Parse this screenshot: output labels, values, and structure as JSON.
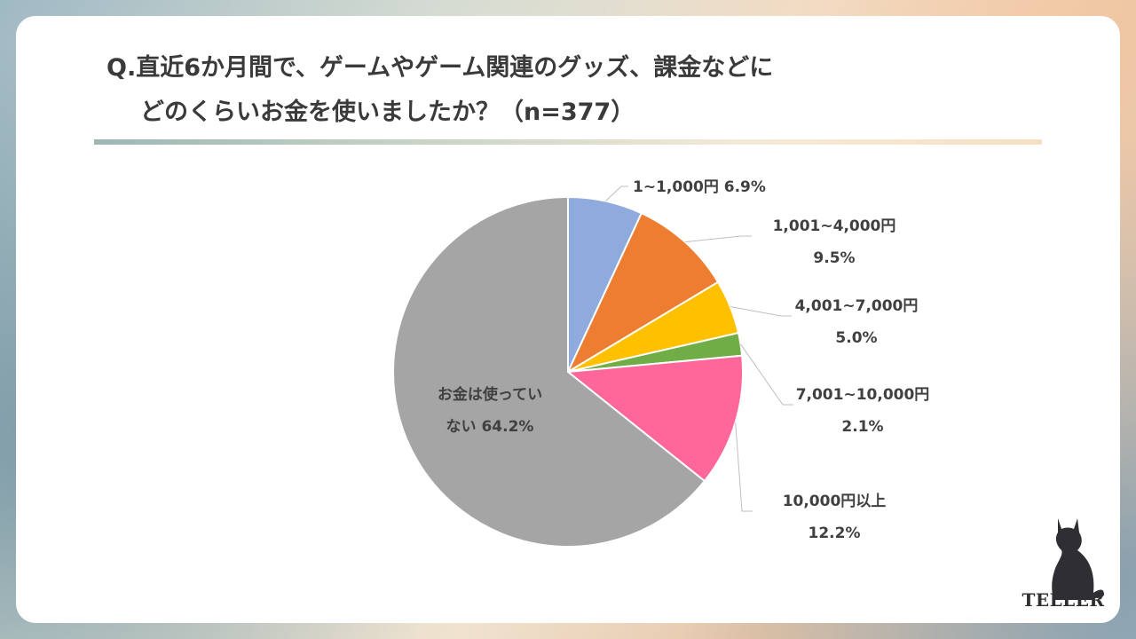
{
  "header": {
    "title_line1": "Q.直近6か月間で、ゲームやゲーム関連のグッズ、課金などに",
    "title_line2": "どのくらいお金を使いましたか？（n=377）"
  },
  "brand": {
    "name": "TELLER",
    "logo_icon": "cat-icon"
  },
  "chart_data": {
    "type": "pie",
    "unit": "%",
    "slices": [
      {
        "label": "1~1,000円",
        "value": 6.9,
        "color": "#8faadc",
        "display": "6.9%"
      },
      {
        "label": "1,001~4,000円",
        "value": 9.5,
        "color": "#ed7d31",
        "display": "9.5%"
      },
      {
        "label": "4,001~7,000円",
        "value": 5.0,
        "color": "#ffc000",
        "display": "5.0%"
      },
      {
        "label": "7,001~10,000円",
        "value": 2.1,
        "color": "#70ad47",
        "display": "2.1%"
      },
      {
        "label": "10,000円以上",
        "value": 12.2,
        "color": "#ff6699",
        "display": "12.2%"
      },
      {
        "label": "お金は使ってい ない",
        "value": 64.2,
        "color": "#a5a5a5",
        "display": "64.2%"
      }
    ]
  }
}
